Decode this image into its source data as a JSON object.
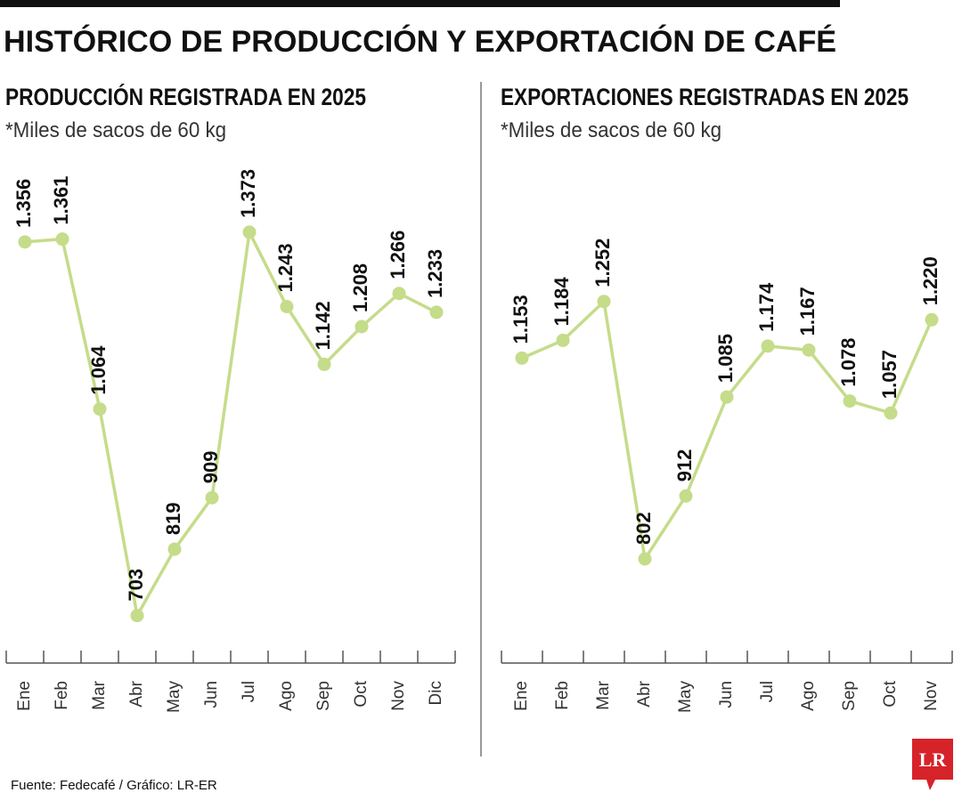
{
  "title": "HISTÓRICO DE PRODUCCIÓN Y EXPORTACIÓN DE CAFÉ",
  "chart_data": [
    {
      "type": "line",
      "title": "PRODUCCIÓN REGISTRADA EN 2025",
      "subtitle": "*Miles de sacos de 60 kg",
      "categories": [
        "Ene",
        "Feb",
        "Mar",
        "Abr",
        "May",
        "Jun",
        "Jul",
        "Ago",
        "Sep",
        "Oct",
        "Nov",
        "Dic"
      ],
      "values": [
        1356,
        1361,
        1064,
        703,
        819,
        909,
        1373,
        1243,
        1142,
        1208,
        1266,
        1233
      ],
      "value_labels": [
        "1.356",
        "1.361",
        "1.064",
        "703",
        "819",
        "909",
        "1.373",
        "1.243",
        "1.142",
        "1.208",
        "1.266",
        "1.233"
      ],
      "color": "#c5dc8a",
      "ylim": [
        620,
        1530
      ]
    },
    {
      "type": "line",
      "title": "EXPORTACIONES REGISTRADAS EN 2025",
      "subtitle": "*Miles de sacos de 60 kg",
      "categories": [
        "Ene",
        "Feb",
        "Mar",
        "Abr",
        "May",
        "Jun",
        "Jul",
        "Ago",
        "Sep",
        "Oct",
        "Nov"
      ],
      "values": [
        1153,
        1184,
        1252,
        802,
        912,
        1085,
        1174,
        1167,
        1078,
        1057,
        1220
      ],
      "value_labels": [
        "1.153",
        "1.184",
        "1.252",
        "802",
        "912",
        "1.085",
        "1.174",
        "1.167",
        "1.078",
        "1.057",
        "1.220"
      ],
      "color": "#c5dc8a",
      "ylim": [
        620,
        1530
      ]
    }
  ],
  "source": "Fuente: Fedecafé / Gráfico: LR-ER",
  "logo": "LR"
}
